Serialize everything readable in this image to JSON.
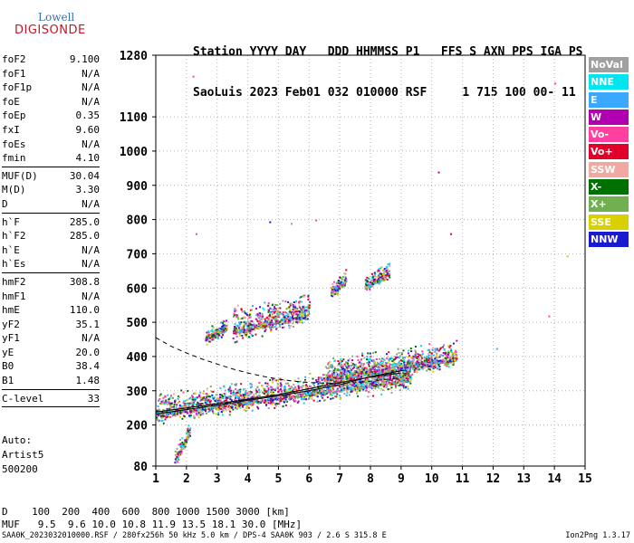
{
  "logo": {
    "line1": "Lowell",
    "line2": "DIGISONDE"
  },
  "header": {
    "row1": "Station YYYY DAY   DDD HHMMSS P1   FFS S AXN PPS IGA PS",
    "row2": "SaoLuis 2023 Feb01 032 010000 RSF     1 715 100 00- 11"
  },
  "params": [
    {
      "label": "foF2",
      "value": "9.100"
    },
    {
      "label": "foF1",
      "value": "N/A"
    },
    {
      "label": "foF1p",
      "value": "N/A"
    },
    {
      "label": "foE",
      "value": "N/A"
    },
    {
      "label": "foEp",
      "value": "0.35"
    },
    {
      "label": "fxI",
      "value": "9.60"
    },
    {
      "label": "foEs",
      "value": "N/A"
    },
    {
      "label": "fmin",
      "value": "4.10"
    },
    {
      "sep": true
    },
    {
      "label": "MUF(D)",
      "value": "30.04"
    },
    {
      "label": "M(D)",
      "value": "3.30"
    },
    {
      "label": "D",
      "value": "N/A"
    },
    {
      "sep": true
    },
    {
      "label": "h`F",
      "value": "285.0"
    },
    {
      "label": "h`F2",
      "value": "285.0"
    },
    {
      "label": "h`E",
      "value": "N/A"
    },
    {
      "label": "h`Es",
      "value": "N/A"
    },
    {
      "sep": true
    },
    {
      "label": "hmF2",
      "value": "308.8"
    },
    {
      "label": "hmF1",
      "value": "N/A"
    },
    {
      "label": "hmE",
      "value": "110.0"
    },
    {
      "label": "yF2",
      "value": "35.1"
    },
    {
      "label": "yF1",
      "value": "N/A"
    },
    {
      "label": "yE",
      "value": "20.0"
    },
    {
      "label": "B0",
      "value": "38.4"
    },
    {
      "label": "B1",
      "value": "1.48"
    },
    {
      "sep": true
    },
    {
      "label": "C-level",
      "value": "33"
    },
    {
      "sep": true
    }
  ],
  "autoscale": {
    "line1": "Auto:",
    "line2": "Artist5",
    "line3": "500200"
  },
  "legend": [
    {
      "label": "NoVal",
      "color": "#a0a0a0"
    },
    {
      "label": "NNE",
      "color": "#00e5f0"
    },
    {
      "label": "E",
      "color": "#3aa8ff"
    },
    {
      "label": "W",
      "color": "#b000b0"
    },
    {
      "label": "Vo-",
      "color": "#ff40a0"
    },
    {
      "label": "Vo+",
      "color": "#e0002a"
    },
    {
      "label": "SSW",
      "color": "#f0a8a0"
    },
    {
      "label": "X-",
      "color": "#007000"
    },
    {
      "label": "X+",
      "color": "#70b050"
    },
    {
      "label": "SSE",
      "color": "#d8d000"
    },
    {
      "label": "NNW",
      "color": "#1a1ad0"
    }
  ],
  "bottom": {
    "row1": "D    100  200  400  600  800 1000 1500 3000 [km]",
    "row2": "MUF   9.5  9.6 10.0 10.8 11.9 13.5 18.1 30.0 [MHz]"
  },
  "footer": {
    "left": "SAA0K_2023032010000.RSF / 280fx256h 50 kHz 5.0 km / DPS-4 SAA0K 903 / 2.6 S 315.8 E",
    "right": "Ion2Png 1.3.17"
  },
  "chart_data": {
    "type": "scatter",
    "xlim": [
      1,
      15
    ],
    "ylim": [
      80,
      1280
    ],
    "x_ticks": [
      1,
      2,
      3,
      4,
      5,
      6,
      7,
      8,
      9,
      10,
      11,
      12,
      13,
      14,
      15
    ],
    "y_ticks": [
      80,
      200,
      300,
      400,
      500,
      600,
      700,
      800,
      900,
      1000,
      1100,
      1280
    ],
    "grid": "dotted",
    "legend_position": "right",
    "curves": [
      {
        "style": "solid",
        "points": [
          [
            1.0,
            232
          ],
          [
            2.0,
            245
          ],
          [
            3.0,
            258
          ],
          [
            4.0,
            272
          ],
          [
            5.0,
            285
          ],
          [
            6.0,
            300
          ],
          [
            7.0,
            318
          ],
          [
            7.6,
            332
          ],
          [
            8.2,
            345
          ],
          [
            8.8,
            355
          ],
          [
            9.1,
            360
          ]
        ]
      },
      {
        "style": "dashed",
        "points": [
          [
            1.0,
            455
          ],
          [
            1.5,
            430
          ],
          [
            2.0,
            410
          ],
          [
            2.5,
            393
          ],
          [
            3.0,
            378
          ],
          [
            3.5,
            364
          ],
          [
            4.0,
            352
          ],
          [
            4.5,
            342
          ],
          [
            5.0,
            334
          ],
          [
            5.5,
            328
          ],
          [
            6.0,
            324
          ],
          [
            6.5,
            322
          ],
          [
            7.0,
            322
          ],
          [
            7.5,
            324
          ],
          [
            8.0,
            328
          ],
          [
            8.5,
            333
          ],
          [
            9.0,
            338
          ]
        ]
      },
      {
        "style": "solid",
        "points": [
          [
            1.0,
            238
          ],
          [
            2.0,
            250
          ],
          [
            3.0,
            262
          ],
          [
            4.0,
            275
          ],
          [
            5.0,
            289
          ],
          [
            6.0,
            306
          ],
          [
            7.0,
            324
          ],
          [
            8.0,
            340
          ],
          [
            9.0,
            352
          ]
        ]
      }
    ],
    "clusters": [
      {
        "x": [
          1.0,
          9.3
        ],
        "y_base_start": 230,
        "y_base_end": 330,
        "spread": 70
      },
      {
        "x": [
          6.5,
          10.8
        ],
        "y_base_start": 330,
        "y_base_end": 390,
        "spread": 70
      },
      {
        "x": [
          1.6,
          2.1
        ],
        "y_base_start": 90,
        "y_base_end": 180,
        "spread": 40
      },
      {
        "x": [
          2.6,
          3.3
        ],
        "y_base_start": 450,
        "y_base_end": 480,
        "spread": 40
      },
      {
        "x": [
          3.5,
          6.0
        ],
        "y_base_start": 470,
        "y_base_end": 520,
        "spread": 80
      },
      {
        "x": [
          6.7,
          7.2
        ],
        "y_base_start": 580,
        "y_base_end": 620,
        "spread": 40
      },
      {
        "x": [
          7.8,
          8.6
        ],
        "y_base_start": 600,
        "y_base_end": 640,
        "spread": 40
      }
    ],
    "isolated_points": [
      [
        2.2,
        1220,
        "#ff40a0"
      ],
      [
        14.0,
        1200,
        "#ff40a0"
      ],
      [
        10.2,
        940,
        "#b000b0"
      ],
      [
        2.3,
        760,
        "#ff40a0"
      ],
      [
        10.6,
        760,
        "#e0002a"
      ],
      [
        14.4,
        695,
        "#d8d000"
      ],
      [
        13.8,
        520,
        "#ff40a0"
      ],
      [
        12.1,
        425,
        "#3aa8ff"
      ],
      [
        4.7,
        795,
        "#1a1ad0"
      ],
      [
        5.4,
        790,
        "#a0a0a0"
      ],
      [
        6.2,
        800,
        "#ff40a0"
      ]
    ]
  }
}
